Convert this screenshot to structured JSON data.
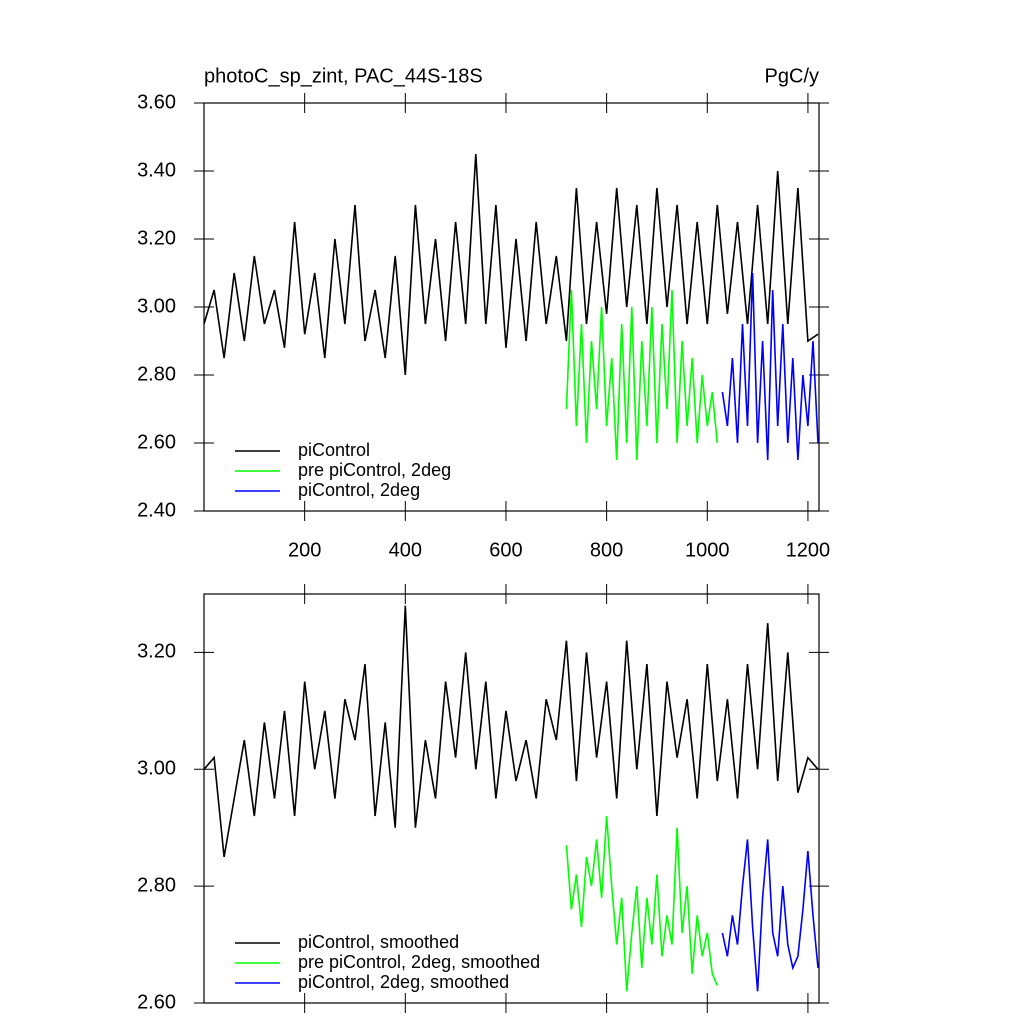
{
  "chart_data": [
    {
      "type": "line",
      "title": "photoC_sp_zint, PAC_44S-18S",
      "units": "PgC/y",
      "xlim": [
        0,
        1222
      ],
      "xticks": [
        200,
        400,
        600,
        800,
        1000,
        1200
      ],
      "ylim": [
        2.4,
        3.6
      ],
      "yticks": [
        {
          "value": 2.4,
          "label": "2.40"
        },
        {
          "value": 2.6,
          "label": "2.60"
        },
        {
          "value": 2.8,
          "label": "2.80"
        },
        {
          "value": 3.0,
          "label": "3.00"
        },
        {
          "value": 3.2,
          "label": "3.20"
        },
        {
          "value": 3.4,
          "label": "3.40"
        },
        {
          "value": 3.6,
          "label": "3.60"
        }
      ],
      "legend": "lower left",
      "series": [
        {
          "name": "piControl",
          "color": "#000000",
          "x": [
            0,
            20,
            40,
            60,
            80,
            100,
            120,
            140,
            160,
            180,
            200,
            220,
            240,
            260,
            280,
            300,
            320,
            340,
            360,
            380,
            400,
            420,
            440,
            460,
            480,
            500,
            520,
            540,
            560,
            580,
            600,
            620,
            640,
            660,
            680,
            700,
            720,
            740,
            760,
            780,
            800,
            820,
            840,
            860,
            880,
            900,
            920,
            940,
            960,
            980,
            1000,
            1020,
            1040,
            1060,
            1080,
            1100,
            1120,
            1140,
            1160,
            1180,
            1200,
            1220
          ],
          "values": [
            2.95,
            3.05,
            2.85,
            3.1,
            2.9,
            3.15,
            2.95,
            3.05,
            2.88,
            3.25,
            2.92,
            3.1,
            2.85,
            3.2,
            2.95,
            3.3,
            2.9,
            3.05,
            2.85,
            3.15,
            2.8,
            3.3,
            2.95,
            3.2,
            2.9,
            3.25,
            2.95,
            3.45,
            2.95,
            3.3,
            2.88,
            3.2,
            2.9,
            3.25,
            2.95,
            3.15,
            2.9,
            3.35,
            2.95,
            3.25,
            2.98,
            3.35,
            3.0,
            3.3,
            2.95,
            3.35,
            3.0,
            3.3,
            2.95,
            3.25,
            2.95,
            3.3,
            2.98,
            3.25,
            2.95,
            3.3,
            2.95,
            3.4,
            2.95,
            3.35,
            2.9,
            2.92
          ]
        },
        {
          "name": "pre piControl, 2deg",
          "color": "#00ff00",
          "x": [
            720,
            730,
            740,
            750,
            760,
            770,
            780,
            790,
            800,
            810,
            820,
            830,
            840,
            850,
            860,
            870,
            880,
            890,
            900,
            910,
            920,
            930,
            940,
            950,
            960,
            970,
            980,
            990,
            1000,
            1010,
            1020
          ],
          "values": [
            2.7,
            3.05,
            2.65,
            2.95,
            2.6,
            2.9,
            2.7,
            3.0,
            2.65,
            2.85,
            2.55,
            2.95,
            2.6,
            3.0,
            2.55,
            2.9,
            2.65,
            3.0,
            2.6,
            2.95,
            2.7,
            3.05,
            2.6,
            2.9,
            2.65,
            2.85,
            2.6,
            2.8,
            2.65,
            2.75,
            2.6
          ]
        },
        {
          "name": "piControl, 2deg",
          "color": "#0000ff",
          "x": [
            1030,
            1040,
            1050,
            1060,
            1070,
            1080,
            1090,
            1100,
            1110,
            1120,
            1130,
            1140,
            1150,
            1160,
            1170,
            1180,
            1190,
            1200,
            1210,
            1220
          ],
          "values": [
            2.75,
            2.65,
            2.85,
            2.6,
            2.95,
            2.65,
            3.1,
            2.6,
            2.9,
            2.55,
            3.05,
            2.65,
            2.95,
            2.6,
            2.85,
            2.55,
            2.8,
            2.65,
            2.9,
            2.6
          ]
        }
      ]
    },
    {
      "type": "line",
      "xlim": [
        0,
        1222
      ],
      "xticks": [
        200,
        400,
        600,
        800,
        1000,
        1200
      ],
      "ylim": [
        2.6,
        3.3
      ],
      "yticks": [
        {
          "value": 2.6,
          "label": "2.60"
        },
        {
          "value": 2.8,
          "label": "2.80"
        },
        {
          "value": 3.0,
          "label": "3.00"
        },
        {
          "value": 3.2,
          "label": "3.20"
        }
      ],
      "legend": "lower left",
      "series": [
        {
          "name": "piControl, smoothed",
          "color": "#000000",
          "x": [
            0,
            20,
            40,
            60,
            80,
            100,
            120,
            140,
            160,
            180,
            200,
            220,
            240,
            260,
            280,
            300,
            320,
            340,
            360,
            380,
            400,
            420,
            440,
            460,
            480,
            500,
            520,
            540,
            560,
            580,
            600,
            620,
            640,
            660,
            680,
            700,
            720,
            740,
            760,
            780,
            800,
            820,
            840,
            860,
            880,
            900,
            920,
            940,
            960,
            980,
            1000,
            1020,
            1040,
            1060,
            1080,
            1100,
            1120,
            1140,
            1160,
            1180,
            1200,
            1220
          ],
          "values": [
            3.0,
            3.02,
            2.85,
            2.95,
            3.05,
            2.92,
            3.08,
            2.95,
            3.1,
            2.92,
            3.15,
            3.0,
            3.1,
            2.95,
            3.12,
            3.05,
            3.18,
            2.92,
            3.08,
            2.9,
            3.28,
            2.9,
            3.05,
            2.95,
            3.15,
            3.02,
            3.2,
            3.0,
            3.15,
            2.95,
            3.1,
            2.98,
            3.05,
            2.95,
            3.12,
            3.05,
            3.22,
            2.98,
            3.2,
            3.02,
            3.15,
            2.95,
            3.22,
            3.0,
            3.18,
            2.92,
            3.15,
            3.02,
            3.12,
            2.95,
            3.18,
            2.98,
            3.12,
            2.95,
            3.18,
            3.0,
            3.25,
            2.98,
            3.2,
            2.96,
            3.02,
            3.0
          ]
        },
        {
          "name": "pre piControl, 2deg, smoothed",
          "color": "#00ff00",
          "x": [
            720,
            730,
            740,
            750,
            760,
            770,
            780,
            790,
            800,
            810,
            820,
            830,
            840,
            850,
            860,
            870,
            880,
            890,
            900,
            910,
            920,
            930,
            940,
            950,
            960,
            970,
            980,
            990,
            1000,
            1010,
            1020
          ],
          "values": [
            2.87,
            2.76,
            2.82,
            2.73,
            2.85,
            2.8,
            2.88,
            2.78,
            2.92,
            2.8,
            2.7,
            2.78,
            2.62,
            2.72,
            2.8,
            2.66,
            2.78,
            2.7,
            2.82,
            2.68,
            2.75,
            2.7,
            2.9,
            2.72,
            2.8,
            2.65,
            2.75,
            2.68,
            2.72,
            2.65,
            2.63
          ]
        },
        {
          "name": "piControl, 2deg, smoothed",
          "color": "#0000ff",
          "x": [
            1030,
            1040,
            1050,
            1060,
            1070,
            1080,
            1090,
            1100,
            1110,
            1120,
            1130,
            1140,
            1150,
            1160,
            1170,
            1180,
            1190,
            1200,
            1210,
            1220
          ],
          "values": [
            2.72,
            2.68,
            2.75,
            2.7,
            2.8,
            2.88,
            2.73,
            2.62,
            2.78,
            2.88,
            2.72,
            2.68,
            2.8,
            2.7,
            2.66,
            2.68,
            2.76,
            2.86,
            2.75,
            2.66
          ]
        }
      ]
    }
  ]
}
